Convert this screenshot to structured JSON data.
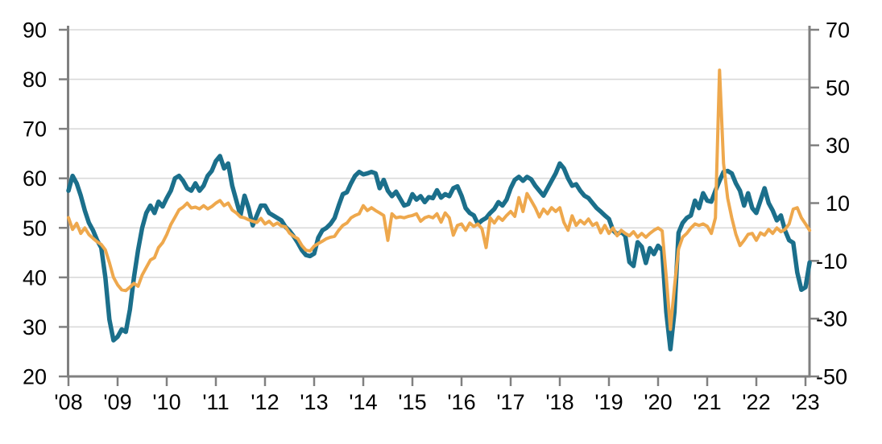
{
  "page": {
    "background": "#ffffff"
  },
  "chart_data": {
    "type": "line",
    "grid": true,
    "legend": "none",
    "x": {
      "start": "2008-01",
      "end": "2023-02",
      "frequency": "monthly",
      "tick_labels": [
        "'08",
        "'09",
        "'10",
        "'11",
        "'12",
        "'13",
        "'14",
        "'15",
        "'16",
        "'17",
        "'18",
        "'19",
        "'20",
        "'21",
        "'22",
        "'23"
      ]
    },
    "axes": {
      "left": {
        "range": [
          20,
          90
        ],
        "ticks": [
          20,
          30,
          40,
          50,
          60,
          70,
          80,
          90
        ]
      },
      "right": {
        "range": [
          -50,
          70
        ],
        "ticks": [
          -50,
          -30,
          -10,
          10,
          30,
          50,
          70
        ]
      }
    },
    "colors": {
      "gridline": "#d9d9d9",
      "axis": "#808080",
      "label": "#000000",
      "teal": "#1b6f8b",
      "orange": "#eea84d"
    },
    "series": [
      {
        "name": "teal-line",
        "axis": "left",
        "color": "#1b6f8b",
        "stroke_width": 5.5,
        "values": [
          57.5,
          60.5,
          59.0,
          56.5,
          53.5,
          51.0,
          49.5,
          47.5,
          46.0,
          40.0,
          31.5,
          27.3,
          28.0,
          29.5,
          29.0,
          33.5,
          40.0,
          45.5,
          50.0,
          53.0,
          54.5,
          53.0,
          55.3,
          54.3,
          56.0,
          57.5,
          60.0,
          60.5,
          59.5,
          58.0,
          57.5,
          59.0,
          57.5,
          58.5,
          60.5,
          61.5,
          63.5,
          64.5,
          62.0,
          63.0,
          58.5,
          55.5,
          52.5,
          56.5,
          54.0,
          50.5,
          52.5,
          54.5,
          54.5,
          53.0,
          52.5,
          52.0,
          51.5,
          50.2,
          49.4,
          48.3,
          47.0,
          45.5,
          44.5,
          44.3,
          44.8,
          48.0,
          49.5,
          50.0,
          50.8,
          52.0,
          54.5,
          56.8,
          57.2,
          59.0,
          60.5,
          61.3,
          60.8,
          61.0,
          61.3,
          61.0,
          58.0,
          59.7,
          57.5,
          56.4,
          57.3,
          55.9,
          54.5,
          54.8,
          56.8,
          55.7,
          56.4,
          55.2,
          56.2,
          56.0,
          57.6,
          56.1,
          56.8,
          56.4,
          58.0,
          58.4,
          56.5,
          54.0,
          53.0,
          52.5,
          50.8,
          51.5,
          52.0,
          53.0,
          53.8,
          55.2,
          54.5,
          55.7,
          58.0,
          59.7,
          60.3,
          59.5,
          60.3,
          59.8,
          58.5,
          57.5,
          56.5,
          58.0,
          59.5,
          61.0,
          63.0,
          62.0,
          60.0,
          58.5,
          58.8,
          57.5,
          56.5,
          56.0,
          55.0,
          54.0,
          53.3,
          52.5,
          51.8,
          49.5,
          48.7,
          49.2,
          48.4,
          43.1,
          42.3,
          47.1,
          46.2,
          42.9,
          45.9,
          44.7,
          46.4,
          45.5,
          33.0,
          25.5,
          33.0,
          49.0,
          51.0,
          52.0,
          52.5,
          55.5,
          54.0,
          57.0,
          55.5,
          55.3,
          57.5,
          59.5,
          61.3,
          61.5,
          61.0,
          59.0,
          57.5,
          54.5,
          57.0,
          54.0,
          53.0,
          55.5,
          58.0,
          55.0,
          53.5,
          51.5,
          52.5,
          49.5,
          47.5,
          47.0,
          41.0,
          37.5,
          38.0,
          43.0
        ]
      },
      {
        "name": "orange-line",
        "axis": "right",
        "color": "#eea84d",
        "stroke_width": 4,
        "values": [
          5.0,
          0.9,
          3.0,
          -0.5,
          1.4,
          -0.9,
          -2.2,
          -3.4,
          -4.3,
          -6.2,
          -10.6,
          -15.7,
          -18.3,
          -20.0,
          -20.3,
          -19.1,
          -17.8,
          -18.8,
          -14.9,
          -12.3,
          -9.7,
          -8.9,
          -5.4,
          -3.7,
          -0.9,
          2.6,
          5.1,
          7.7,
          8.6,
          10.0,
          8.3,
          8.6,
          8.0,
          9.1,
          8.0,
          8.8,
          10.0,
          10.9,
          9.1,
          10.0,
          7.6,
          6.6,
          5.2,
          4.9,
          4.2,
          3.7,
          3.3,
          4.7,
          2.8,
          3.7,
          2.3,
          3.1,
          2.1,
          1.8,
          -0.4,
          -1.5,
          -2.3,
          -4.7,
          -6.3,
          -6.6,
          -4.9,
          -4.0,
          -3.2,
          -2.3,
          -1.8,
          -1.5,
          0.6,
          2.3,
          3.1,
          4.9,
          5.7,
          6.3,
          9.1,
          7.4,
          8.4,
          7.4,
          6.6,
          5.7,
          -2.9,
          6.3,
          4.9,
          5.2,
          4.9,
          5.4,
          5.7,
          6.3,
          3.7,
          4.9,
          5.4,
          4.9,
          6.3,
          3.4,
          6.6,
          4.9,
          -1.1,
          2.3,
          2.8,
          0.6,
          3.1,
          1.9,
          2.8,
          1.1,
          -5.4,
          4.9,
          3.1,
          5.2,
          4.0,
          5.7,
          7.1,
          5.4,
          11.9,
          7.1,
          13.3,
          10.9,
          8.4,
          5.2,
          7.9,
          6.3,
          8.4,
          7.1,
          8.4,
          3.3,
          0.6,
          5.6,
          2.3,
          4.0,
          2.8,
          4.5,
          2.3,
          3.1,
          -0.3,
          2.3,
          -0.5,
          1.4,
          -1.3,
          0.6,
          -0.5,
          -1.3,
          0.1,
          -1.8,
          -0.5,
          -1.8,
          -0.5,
          0.6,
          1.4,
          0.4,
          -15.7,
          -33.7,
          -19.1,
          -5.9,
          -1.8,
          -0.5,
          1.4,
          2.8,
          2.3,
          2.8,
          2.0,
          -0.5,
          4.9,
          56.0,
          23.7,
          11.7,
          4.9,
          -0.8,
          -4.7,
          -2.9,
          -0.8,
          -0.5,
          -2.9,
          -0.3,
          -1.1,
          0.9,
          -0.5,
          1.4,
          0.1,
          0.9,
          2.8,
          7.9,
          8.4,
          4.9,
          2.8,
          0.6
        ]
      }
    ]
  }
}
